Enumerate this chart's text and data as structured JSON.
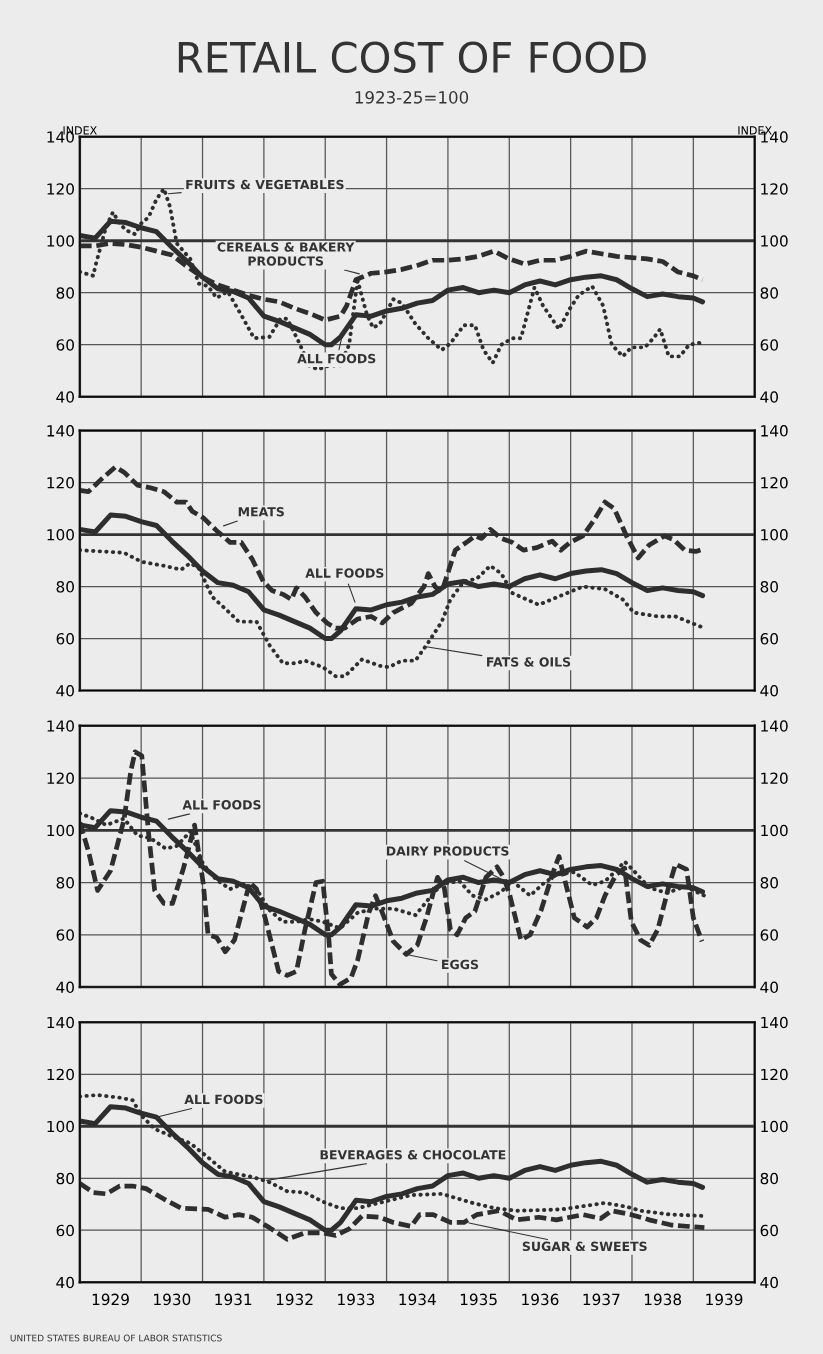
{
  "chart_data": [
    {
      "type": "line",
      "title": "RETAIL COST OF FOOD",
      "subtitle": "1923-25=100",
      "ylabel": "INDEX",
      "y2label": "INDEX",
      "xlim": [
        1929,
        1940
      ],
      "ylim": [
        40,
        140
      ],
      "y2lim": [
        40,
        140
      ],
      "xticks": [
        {
          "value": 1929,
          "label": null
        },
        {
          "value": 1930,
          "label": null
        },
        {
          "value": 1931,
          "label": null
        },
        {
          "value": 1932,
          "label": null
        },
        {
          "value": 1933,
          "label": null
        },
        {
          "value": 1934,
          "label": null
        },
        {
          "value": 1935,
          "label": null
        },
        {
          "value": 1936,
          "label": null
        },
        {
          "value": 1937,
          "label": null
        },
        {
          "value": 1938,
          "label": null
        },
        {
          "value": 1939,
          "label": null
        },
        {
          "value": 1940,
          "label": null
        }
      ],
      "yticks": [
        40,
        60,
        80,
        100,
        120,
        140
      ],
      "y2ticks": [
        40,
        60,
        80,
        100,
        120,
        140
      ],
      "tick_labels": "y",
      "grid": true,
      "legend": false,
      "ref_lines": [
        {
          "axis": "y",
          "value": 100,
          "color": "#333333"
        }
      ],
      "series": [
        {
          "color": "#2e2e2e",
          "line_style": "solid",
          "x": [
            1929,
            1929.25,
            1929.5,
            1929.75,
            1930,
            1930.25,
            1930.5,
            1930.75,
            1931,
            1931.25,
            1931.5,
            1931.75,
            1932,
            1932.25,
            1932.5,
            1932.75,
            1933,
            1933.1,
            1933.25,
            1933.5,
            1933.75,
            1934,
            1934.25,
            1934.5,
            1934.75,
            1935,
            1935.25,
            1935.5,
            1935.75,
            1936,
            1936.25,
            1936.5,
            1936.75,
            1937,
            1937.25,
            1937.5,
            1937.75,
            1938,
            1938.25,
            1938.5,
            1938.75,
            1939,
            1939.15
          ],
          "values": [
            102,
            101,
            107.5,
            107,
            105,
            103.5,
            97.5,
            92,
            86,
            81.5,
            80.5,
            78,
            71,
            69,
            66.5,
            64,
            60,
            60,
            63,
            71.5,
            71,
            73,
            74,
            76,
            77,
            81,
            82,
            80,
            81,
            80,
            83,
            84.5,
            83,
            85,
            86,
            86.5,
            85,
            81.5,
            78.5,
            79.5,
            78.5,
            78,
            76.5
          ]
        },
        {
          "color": "#2e2e2e",
          "line_style": "dashed",
          "x": [
            1929,
            1929.25,
            1929.5,
            1929.75,
            1930,
            1930.25,
            1930.5,
            1930.75,
            1931,
            1931.25,
            1931.5,
            1931.75,
            1932,
            1932.25,
            1932.5,
            1932.75,
            1933,
            1933.25,
            1933.35,
            1933.5,
            1933.75,
            1934,
            1934.25,
            1934.5,
            1934.75,
            1935,
            1935.25,
            1935.5,
            1935.75,
            1936,
            1936.25,
            1936.5,
            1936.75,
            1937,
            1937.25,
            1937.5,
            1937.75,
            1938,
            1938.25,
            1938.5,
            1938.75,
            1939,
            1939.15
          ],
          "values": [
            98,
            98,
            99,
            98.5,
            97.5,
            96,
            94.5,
            90,
            86,
            83,
            81,
            79,
            77.5,
            76.5,
            74,
            72,
            69.5,
            71,
            75,
            85,
            87.5,
            88,
            89,
            90.5,
            92.5,
            92.5,
            93,
            94,
            96,
            93,
            91,
            92.5,
            92.5,
            94,
            96,
            95,
            94,
            93.5,
            93,
            92,
            88,
            86.5,
            85
          ]
        },
        {
          "color": "#2e2e2e",
          "line_style": "dotted",
          "x": [
            1929,
            1929.22,
            1929.25,
            1929.43,
            1929.54,
            1929.65,
            1929.76,
            1929.9,
            1930.01,
            1930.12,
            1930.25,
            1930.37,
            1930.47,
            1930.58,
            1930.8,
            1930.94,
            1931.09,
            1931.23,
            1931.41,
            1931.63,
            1931.84,
            1932.09,
            1932.27,
            1932.38,
            1932.56,
            1932.74,
            1932.88,
            1933.06,
            1933.24,
            1933.39,
            1933.5,
            1933.53,
            1933.68,
            1933.78,
            1933.89,
            1934.11,
            1934.25,
            1934.47,
            1934.68,
            1934.9,
            1935.04,
            1935.26,
            1935.44,
            1935.58,
            1935.73,
            1935.87,
            1936.05,
            1936.19,
            1936.41,
            1936.55,
            1936.81,
            1936.99,
            1937.13,
            1937.35,
            1937.53,
            1937.67,
            1937.85,
            1937.99,
            1938.21,
            1938.35,
            1938.46,
            1938.6,
            1938.78,
            1938.93,
            1939.18
          ],
          "values": [
            88,
            86.5,
            90,
            105.5,
            111,
            106.5,
            104,
            102.5,
            107,
            109,
            116,
            120,
            113,
            99,
            93,
            83.5,
            82.5,
            78,
            80.5,
            71.5,
            62.5,
            63,
            70,
            70,
            61.5,
            52,
            50.5,
            52,
            52,
            60,
            80,
            84.5,
            71.5,
            66.5,
            68,
            77.5,
            76,
            68,
            62.5,
            58,
            60.5,
            67.5,
            67.5,
            58,
            53,
            60,
            62.5,
            62.5,
            82,
            75,
            66,
            74,
            79,
            82.5,
            75,
            60,
            55.5,
            59,
            59,
            62.5,
            66,
            55.5,
            55.5,
            60,
            61
          ]
        }
      ],
      "annotations": [
        {
          "text": "FRUITS & VEGETABLES",
          "x": 1930.4,
          "y": 118
        },
        {
          "text": "CEREALS & BAKERY\nPRODUCTS",
          "x": 1933.6,
          "y": 87
        },
        {
          "text": "ALL FOODS",
          "x": 1933.3,
          "y": 66
        }
      ]
    },
    {
      "type": "line",
      "ylabel": null,
      "xlim": [
        1929,
        1940
      ],
      "ylim": [
        40,
        140
      ],
      "y2lim": [
        40,
        140
      ],
      "xticks": [
        {
          "value": 1929,
          "label": null
        },
        {
          "value": 1930,
          "label": null
        },
        {
          "value": 1931,
          "label": null
        },
        {
          "value": 1932,
          "label": null
        },
        {
          "value": 1933,
          "label": null
        },
        {
          "value": 1934,
          "label": null
        },
        {
          "value": 1935,
          "label": null
        },
        {
          "value": 1936,
          "label": null
        },
        {
          "value": 1937,
          "label": null
        },
        {
          "value": 1938,
          "label": null
        },
        {
          "value": 1939,
          "label": null
        },
        {
          "value": 1940,
          "label": null
        }
      ],
      "yticks": [
        40,
        60,
        80,
        100,
        120,
        140
      ],
      "y2ticks": [
        40,
        60,
        80,
        100,
        120,
        140
      ],
      "tick_labels": "y",
      "grid": true,
      "legend": false,
      "ref_lines": [
        {
          "axis": "y",
          "value": 100,
          "color": "#333333"
        }
      ],
      "series": [
        {
          "color": "#2e2e2e",
          "line_style": "solid",
          "x": [
            1929,
            1929.25,
            1929.5,
            1929.75,
            1930,
            1930.25,
            1930.5,
            1930.75,
            1931,
            1931.25,
            1931.5,
            1931.75,
            1932,
            1932.25,
            1932.5,
            1932.75,
            1933,
            1933.1,
            1933.25,
            1933.5,
            1933.75,
            1934,
            1934.25,
            1934.5,
            1934.75,
            1935,
            1935.25,
            1935.5,
            1935.75,
            1936,
            1936.25,
            1936.5,
            1936.75,
            1937,
            1937.25,
            1937.5,
            1937.75,
            1938,
            1938.25,
            1938.5,
            1938.75,
            1939,
            1939.15
          ],
          "values": [
            102,
            101,
            107.5,
            107,
            105,
            103.5,
            97.5,
            92,
            86,
            81.5,
            80.5,
            78,
            71,
            69,
            66.5,
            64,
            60,
            60,
            63,
            71.5,
            71,
            73,
            74,
            76,
            77,
            81,
            82,
            80,
            81,
            80,
            83,
            84.5,
            83,
            85,
            86,
            86.5,
            85,
            81.5,
            78.5,
            79.5,
            78.5,
            78,
            76.5
          ]
        },
        {
          "color": "#2e2e2e",
          "line_style": "dashed",
          "x": [
            1929,
            1929.14,
            1929.36,
            1929.58,
            1929.72,
            1929.94,
            1930.15,
            1930.37,
            1930.58,
            1930.73,
            1930.83,
            1931.01,
            1931.23,
            1931.45,
            1931.63,
            1931.81,
            1931.99,
            1932.13,
            1932.31,
            1932.45,
            1932.53,
            1932.67,
            1932.85,
            1933.03,
            1933.17,
            1933.32,
            1933.53,
            1933.75,
            1933.93,
            1934.11,
            1934.4,
            1934.61,
            1934.68,
            1934.79,
            1934.9,
            1935.12,
            1935.33,
            1935.44,
            1935.55,
            1935.69,
            1935.87,
            1936.05,
            1936.23,
            1936.45,
            1936.7,
            1936.84,
            1936.99,
            1937.2,
            1937.38,
            1937.56,
            1937.71,
            1937.92,
            1938.1,
            1938.28,
            1938.53,
            1938.68,
            1938.86,
            1939.04,
            1939.18
          ],
          "values": [
            117,
            116.5,
            121.5,
            126,
            124,
            119,
            118,
            116.5,
            112.5,
            112.5,
            109,
            106.5,
            101.5,
            97,
            97,
            90.5,
            82,
            78.5,
            77,
            75,
            79.5,
            76,
            70,
            66,
            64,
            64,
            67.5,
            68.5,
            66,
            70,
            73.5,
            80,
            85,
            80,
            78,
            94,
            97.5,
            99.5,
            98.5,
            102,
            98.5,
            97,
            94,
            95,
            97.5,
            94,
            97,
            99.5,
            105.5,
            112.5,
            110,
            99,
            91,
            96,
            99.5,
            98,
            94,
            93.5,
            94.5
          ]
        },
        {
          "color": "#2e2e2e",
          "line_style": "dotted",
          "x": [
            1929,
            1929.36,
            1929.72,
            1930.01,
            1930.37,
            1930.65,
            1930.8,
            1930.94,
            1931.16,
            1931.37,
            1931.59,
            1931.88,
            1932.09,
            1932.31,
            1932.53,
            1932.67,
            1932.96,
            1933.17,
            1933.32,
            1933.6,
            1933.89,
            1934.04,
            1934.25,
            1934.47,
            1934.68,
            1934.9,
            1935.04,
            1935.26,
            1935.47,
            1935.69,
            1935.87,
            1936.05,
            1936.48,
            1936.84,
            1937.2,
            1937.56,
            1937.85,
            1938.03,
            1938.42,
            1938.71,
            1939.18
          ],
          "values": [
            94,
            93.5,
            93,
            89.5,
            88,
            86.5,
            89,
            87,
            76,
            71.5,
            66.5,
            66.5,
            57.5,
            50.5,
            50.5,
            51.5,
            49,
            45.5,
            45.5,
            52,
            49.5,
            49,
            51.5,
            51.5,
            58.5,
            66.5,
            75,
            82,
            83,
            88,
            85,
            77.5,
            73,
            76.5,
            80,
            79,
            75,
            70,
            68.5,
            68.5,
            64
          ]
        }
      ],
      "annotations": [
        {
          "text": "MEATS",
          "x": 1931.3,
          "y": 103
        },
        {
          "text": "ALL FOODS",
          "x": 1933.5,
          "y": 73
        },
        {
          "text": "FATS & OILS",
          "x": 1934.6,
          "y": 57
        }
      ]
    },
    {
      "type": "line",
      "xlim": [
        1929,
        1940
      ],
      "ylim": [
        40,
        140
      ],
      "y2lim": [
        40,
        140
      ],
      "xticks": [
        {
          "value": 1929,
          "label": null
        },
        {
          "value": 1930,
          "label": null
        },
        {
          "value": 1931,
          "label": null
        },
        {
          "value": 1932,
          "label": null
        },
        {
          "value": 1933,
          "label": null
        },
        {
          "value": 1934,
          "label": null
        },
        {
          "value": 1935,
          "label": null
        },
        {
          "value": 1936,
          "label": null
        },
        {
          "value": 1937,
          "label": null
        },
        {
          "value": 1938,
          "label": null
        },
        {
          "value": 1939,
          "label": null
        },
        {
          "value": 1940,
          "label": null
        }
      ],
      "yticks": [
        40,
        60,
        80,
        100,
        120,
        140
      ],
      "y2ticks": [
        40,
        60,
        80,
        100,
        120,
        140
      ],
      "tick_labels": "y",
      "grid": true,
      "legend": false,
      "ref_lines": [
        {
          "axis": "y",
          "value": 100,
          "color": "#333333"
        }
      ],
      "series": [
        {
          "color": "#2e2e2e",
          "line_style": "solid",
          "x": [
            1929,
            1929.25,
            1929.5,
            1929.75,
            1930,
            1930.25,
            1930.5,
            1930.75,
            1931,
            1931.25,
            1931.5,
            1931.75,
            1932,
            1932.25,
            1932.5,
            1932.75,
            1933,
            1933.1,
            1933.25,
            1933.5,
            1933.75,
            1934,
            1934.25,
            1934.5,
            1934.75,
            1935,
            1935.25,
            1935.5,
            1935.75,
            1936,
            1936.25,
            1936.5,
            1936.75,
            1937,
            1937.25,
            1937.5,
            1937.75,
            1938,
            1938.25,
            1938.5,
            1938.75,
            1939,
            1939.15
          ],
          "values": [
            102,
            101,
            107.5,
            107,
            105,
            103.5,
            97.5,
            92,
            86,
            81.5,
            80.5,
            78,
            71,
            69,
            66.5,
            64,
            60,
            60,
            63,
            71.5,
            71,
            73,
            74,
            76,
            77,
            81,
            82,
            80,
            81,
            80,
            83,
            84.5,
            83,
            85,
            86,
            86.5,
            85,
            81.5,
            78.5,
            79.5,
            78.5,
            78,
            76.5
          ]
        },
        {
          "color": "#2e2e2e",
          "line_style": "dashed",
          "x": [
            1929,
            1929.14,
            1929.29,
            1929.5,
            1929.72,
            1929.83,
            1929.9,
            1930.01,
            1930.12,
            1930.22,
            1930.37,
            1930.51,
            1930.69,
            1930.87,
            1931.01,
            1931.09,
            1931.23,
            1931.37,
            1931.52,
            1931.77,
            1931.88,
            1932.02,
            1932.24,
            1932.38,
            1932.53,
            1932.67,
            1932.85,
            1932.96,
            1933.06,
            1933.1,
            1933.24,
            1933.42,
            1933.53,
            1933.71,
            1933.82,
            1933.93,
            1934.11,
            1934.32,
            1934.5,
            1934.65,
            1934.83,
            1934.94,
            1935.04,
            1935.15,
            1935.29,
            1935.44,
            1935.62,
            1935.8,
            1935.91,
            1936.01,
            1936.19,
            1936.34,
            1936.52,
            1936.7,
            1936.81,
            1936.91,
            1937.06,
            1937.27,
            1937.42,
            1937.56,
            1937.74,
            1937.88,
            1937.99,
            1938.14,
            1938.28,
            1938.42,
            1938.6,
            1938.71,
            1938.89,
            1939.0,
            1939.14
          ],
          "values": [
            103,
            92,
            77,
            84.5,
            104,
            122.5,
            130,
            128.5,
            99,
            77,
            72,
            72,
            85.5,
            102,
            80,
            60,
            59,
            53.5,
            58,
            80,
            77.5,
            66.5,
            46,
            44.5,
            46,
            62,
            80,
            80.5,
            58,
            45,
            41,
            43.5,
            50.5,
            68.5,
            75,
            68.5,
            57.5,
            52.5,
            56,
            66.5,
            82,
            78,
            62,
            60,
            66.5,
            69,
            82,
            86,
            82,
            75,
            58,
            60,
            69.5,
            83,
            90,
            80.5,
            66.5,
            63,
            66.5,
            75,
            83,
            85.5,
            65,
            58,
            56,
            62,
            78.5,
            87,
            85,
            66.5,
            57.5
          ]
        },
        {
          "color": "#2e2e2e",
          "line_style": "dotted",
          "x": [
            1929,
            1929.22,
            1929.43,
            1929.72,
            1929.94,
            1930.15,
            1930.4,
            1930.58,
            1930.8,
            1931.01,
            1931.23,
            1931.45,
            1931.66,
            1931.88,
            1932.09,
            1932.31,
            1932.53,
            1932.74,
            1932.96,
            1933.24,
            1933.53,
            1933.82,
            1934.11,
            1934.47,
            1934.68,
            1934.9,
            1935.19,
            1935.4,
            1935.62,
            1935.87,
            1936.05,
            1936.34,
            1936.55,
            1936.77,
            1937.06,
            1937.35,
            1937.56,
            1937.74,
            1937.88,
            1938.03,
            1938.28,
            1938.57,
            1938.86,
            1939.18
          ],
          "values": [
            106.5,
            104.5,
            102,
            104.5,
            98,
            97,
            93,
            94,
            99.5,
            87,
            81,
            77.5,
            79.5,
            77.5,
            69.5,
            65,
            65,
            66,
            65,
            62.5,
            68.5,
            70,
            70,
            67.5,
            73.5,
            79.5,
            80.5,
            75,
            73.5,
            76.5,
            80.5,
            75,
            79.5,
            83,
            84,
            79,
            80.5,
            84.5,
            88,
            84.5,
            78,
            76,
            78.5,
            75
          ]
        }
      ],
      "annotations": [
        {
          "text": "ALL FOODS",
          "x": 1930.4,
          "y": 104
        },
        {
          "text": "DAIRY PRODUCTS",
          "x": 1935.9,
          "y": 81
        },
        {
          "text": "EGGS",
          "x": 1934.32,
          "y": 52.5
        }
      ]
    },
    {
      "type": "line",
      "xlim": [
        1929,
        1940
      ],
      "ylim": [
        40,
        140
      ],
      "y2lim": [
        40,
        140
      ],
      "xticks": [
        {
          "value": 1929,
          "label": null
        },
        {
          "value": 1929.5,
          "label": "1929"
        },
        {
          "value": 1930,
          "label": null
        },
        {
          "value": 1930.5,
          "label": "1930"
        },
        {
          "value": 1931,
          "label": null
        },
        {
          "value": 1931.5,
          "label": "1931"
        },
        {
          "value": 1932,
          "label": null
        },
        {
          "value": 1932.5,
          "label": "1932"
        },
        {
          "value": 1933,
          "label": null
        },
        {
          "value": 1933.5,
          "label": "1933"
        },
        {
          "value": 1934,
          "label": null
        },
        {
          "value": 1934.5,
          "label": "1934"
        },
        {
          "value": 1935,
          "label": null
        },
        {
          "value": 1935.5,
          "label": "1935"
        },
        {
          "value": 1936,
          "label": null
        },
        {
          "value": 1936.5,
          "label": "1936"
        },
        {
          "value": 1937,
          "label": null
        },
        {
          "value": 1937.5,
          "label": "1937"
        },
        {
          "value": 1938,
          "label": null
        },
        {
          "value": 1938.5,
          "label": "1938"
        },
        {
          "value": 1939,
          "label": null
        },
        {
          "value": 1939.5,
          "label": "1939"
        },
        {
          "value": 1940,
          "label": null
        }
      ],
      "yticks": [
        40,
        60,
        80,
        100,
        120,
        140
      ],
      "y2ticks": [
        40,
        60,
        80,
        100,
        120,
        140
      ],
      "grid": true,
      "legend": false,
      "ref_lines": [
        {
          "axis": "y",
          "value": 100,
          "color": "#333333"
        }
      ],
      "series": [
        {
          "color": "#2e2e2e",
          "line_style": "solid",
          "x": [
            1929,
            1929.25,
            1929.5,
            1929.75,
            1930,
            1930.25,
            1930.5,
            1930.75,
            1931,
            1931.25,
            1931.5,
            1931.75,
            1932,
            1932.25,
            1932.5,
            1932.75,
            1933,
            1933.1,
            1933.25,
            1933.5,
            1933.75,
            1934,
            1934.25,
            1934.5,
            1934.75,
            1935,
            1935.25,
            1935.5,
            1935.75,
            1936,
            1936.25,
            1936.5,
            1936.75,
            1937,
            1937.25,
            1937.5,
            1937.75,
            1938,
            1938.25,
            1938.5,
            1938.75,
            1939,
            1939.15
          ],
          "values": [
            102,
            101,
            107.5,
            107,
            105,
            103.5,
            97.5,
            92,
            86,
            81.5,
            80.5,
            78,
            71,
            69,
            66.5,
            64,
            60,
            60,
            63,
            71.5,
            71,
            73,
            74,
            76,
            77,
            81,
            82,
            80,
            81,
            80,
            83,
            84.5,
            83,
            85,
            86,
            86.5,
            85,
            81.5,
            78.5,
            79.5,
            78.5,
            78,
            76.5
          ]
        },
        {
          "color": "#2e2e2e",
          "line_style": "dotted",
          "x": [
            1929,
            1929.29,
            1929.65,
            1929.86,
            1930.01,
            1930.22,
            1930.51,
            1930.8,
            1931.09,
            1931.37,
            1931.81,
            1932.09,
            1932.38,
            1932.67,
            1932.96,
            1933.24,
            1933.53,
            1933.96,
            1934.4,
            1934.9,
            1935.4,
            1935.76,
            1936.12,
            1936.84,
            1937.56,
            1937.92,
            1938.14,
            1938.64,
            1939.18
          ],
          "values": [
            111.5,
            112,
            111,
            110,
            104,
            99,
            96,
            93.5,
            88,
            82.5,
            80.5,
            78.5,
            75,
            74.5,
            71,
            68.5,
            68.5,
            71,
            73.5,
            74,
            70.5,
            68.5,
            67.5,
            68,
            70.5,
            69,
            67.5,
            66,
            65.5
          ]
        },
        {
          "color": "#2e2e2e",
          "line_style": "dashed",
          "x": [
            1929,
            1929.22,
            1929.43,
            1929.65,
            1929.86,
            1930.08,
            1930.37,
            1930.65,
            1931.09,
            1931.37,
            1931.59,
            1931.81,
            1932.09,
            1932.38,
            1932.67,
            1932.96,
            1933.17,
            1933.39,
            1933.6,
            1933.89,
            1934.11,
            1934.4,
            1934.54,
            1934.76,
            1935.04,
            1935.26,
            1935.47,
            1935.83,
            1936.12,
            1936.48,
            1936.77,
            1937.2,
            1937.49,
            1937.67,
            1937.99,
            1938.28,
            1938.64,
            1939.18
          ],
          "values": [
            78,
            74.5,
            74,
            77,
            77,
            76,
            72,
            68.5,
            68,
            65,
            66,
            65,
            61,
            56.5,
            59,
            59,
            58,
            60.5,
            65.5,
            65,
            63,
            61.5,
            66,
            66,
            63,
            63,
            66,
            67.5,
            64,
            65,
            64,
            66,
            64.5,
            67.5,
            66,
            64,
            62,
            61
          ]
        }
      ],
      "annotations": [
        {
          "text": "ALL FOODS",
          "x": 1930.25,
          "y": 103.5
        },
        {
          "text": "BEVERAGES & CHOCOLATE",
          "x": 1932.0,
          "y": 79
        },
        {
          "text": "SUGAR & SWEETS",
          "x": 1935.3,
          "y": 63
        },
        "UNITED STATES BUREAU OF LABOR STATISTICS"
      ]
    }
  ]
}
